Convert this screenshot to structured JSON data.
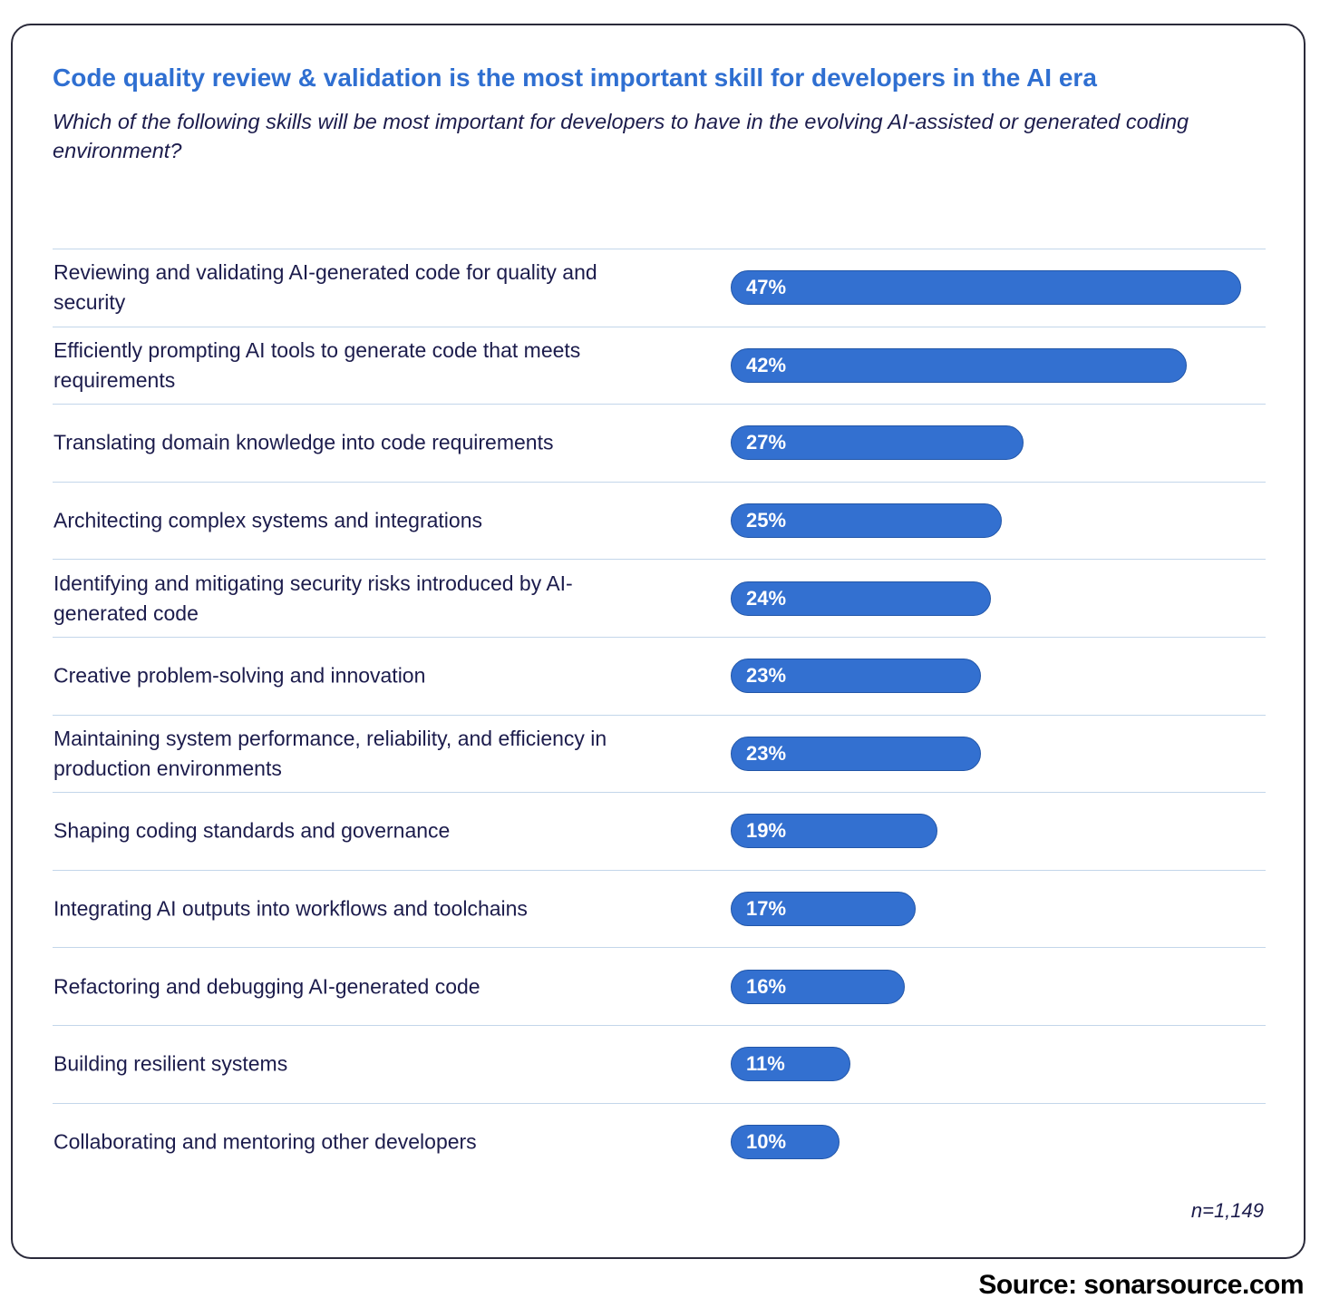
{
  "chart_data": {
    "type": "bar",
    "orientation": "horizontal",
    "title": "Code quality review & validation is the most important skill for developers in the AI era",
    "subtitle": "Which of the following skills will be most important for developers to have in the evolving AI-assisted or generated coding environment?",
    "categories": [
      "Reviewing and validating AI-generated code for quality and security",
      "Efficiently prompting AI tools to generate code that meets requirements",
      "Translating domain knowledge into code requirements",
      "Architecting complex systems and integrations",
      "Identifying and mitigating security risks introduced by AI-generated code",
      "Creative problem-solving and innovation",
      "Maintaining system performance, reliability, and efficiency in production environments",
      "Shaping coding standards and governance",
      "Integrating AI outputs into workflows and toolchains",
      "Refactoring and debugging AI-generated code",
      "Building resilient systems",
      "Collaborating and mentoring other developers"
    ],
    "values": [
      47,
      42,
      27,
      25,
      24,
      23,
      23,
      19,
      17,
      16,
      11,
      10
    ],
    "value_labels": [
      "47%",
      "42%",
      "27%",
      "25%",
      "24%",
      "23%",
      "23%",
      "19%",
      "17%",
      "16%",
      "11%",
      "10%"
    ],
    "unit": "%",
    "xlim": [
      0,
      47
    ],
    "grid": false,
    "legend": "none",
    "bar_color": "#3370d0",
    "title_color": "#2f6fd1",
    "note": "n=1,149"
  },
  "footer": {
    "source": "Source: sonarsource.com"
  }
}
